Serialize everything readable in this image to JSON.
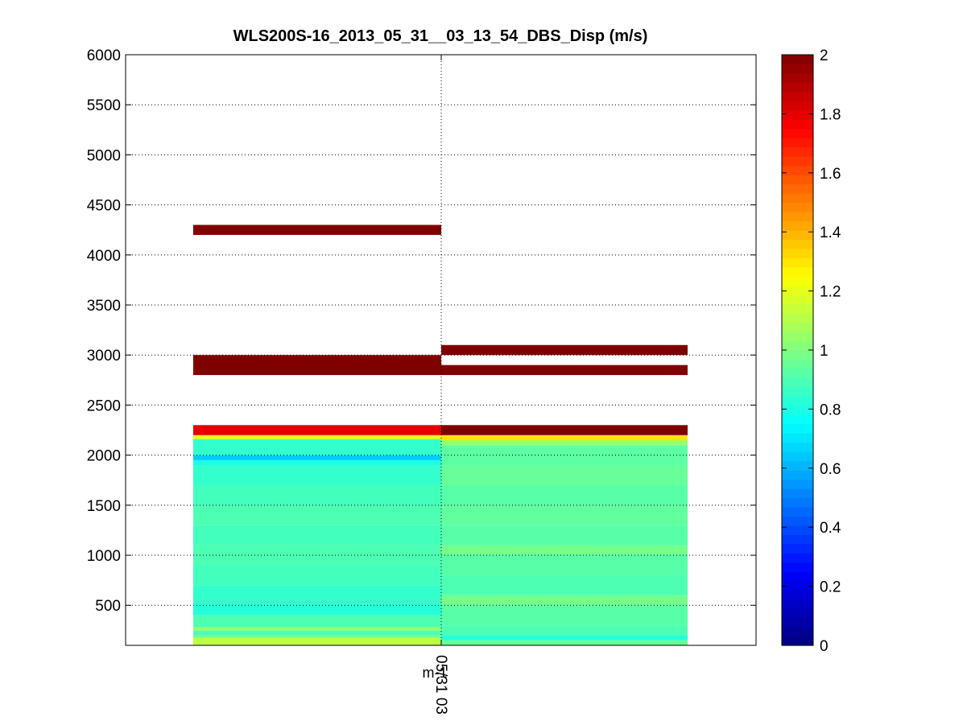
{
  "chart_data": {
    "type": "heatmap",
    "title": "WLS200S-16_2013_05_31__03_13_54_DBS_Disp (m/s)",
    "xlabel": "",
    "ylabel": "",
    "x_tick_labels": [
      "05/31 03"
    ],
    "x_unit_label": "m-1",
    "ylim": [
      100,
      6000
    ],
    "yticks": [
      500,
      1000,
      1500,
      2000,
      2500,
      3000,
      3500,
      4000,
      4500,
      5000,
      5500,
      6000
    ],
    "grid": true,
    "colormap": "jet",
    "clim": [
      0,
      2
    ],
    "colorbar_ticks": [
      0,
      0.2,
      0.4,
      0.6,
      0.8,
      1,
      1.2,
      1.4,
      1.6,
      1.8,
      2
    ],
    "columns": [
      {
        "name": "",
        "cells": [
          {
            "y0": 100,
            "y1": 175,
            "value": 1.12
          },
          {
            "y0": 175,
            "y1": 200,
            "value": 0.98
          },
          {
            "y0": 200,
            "y1": 250,
            "value": 0.9
          },
          {
            "y0": 250,
            "y1": 280,
            "value": 1.05
          },
          {
            "y0": 280,
            "y1": 400,
            "value": 0.9
          },
          {
            "y0": 400,
            "y1": 500,
            "value": 0.82
          },
          {
            "y0": 500,
            "y1": 700,
            "value": 0.85
          },
          {
            "y0": 700,
            "y1": 900,
            "value": 0.88
          },
          {
            "y0": 900,
            "y1": 1100,
            "value": 0.9
          },
          {
            "y0": 1100,
            "y1": 1300,
            "value": 0.88
          },
          {
            "y0": 1300,
            "y1": 1500,
            "value": 0.9
          },
          {
            "y0": 1500,
            "y1": 1700,
            "value": 0.88
          },
          {
            "y0": 1700,
            "y1": 1900,
            "value": 0.85
          },
          {
            "y0": 1900,
            "y1": 1950,
            "value": 0.8
          },
          {
            "y0": 1950,
            "y1": 2000,
            "value": 0.65
          },
          {
            "y0": 2000,
            "y1": 2160,
            "value": 0.85
          },
          {
            "y0": 2160,
            "y1": 2200,
            "value": 1.2
          },
          {
            "y0": 2200,
            "y1": 2300,
            "value": 1.8
          },
          {
            "y0": 2800,
            "y1": 3000,
            "value": 2.0
          },
          {
            "y0": 4200,
            "y1": 4300,
            "value": 2.0
          }
        ]
      },
      {
        "name": "",
        "cells": [
          {
            "y0": 100,
            "y1": 150,
            "value": 0.95
          },
          {
            "y0": 150,
            "y1": 200,
            "value": 0.82
          },
          {
            "y0": 200,
            "y1": 300,
            "value": 0.9
          },
          {
            "y0": 300,
            "y1": 500,
            "value": 0.92
          },
          {
            "y0": 500,
            "y1": 600,
            "value": 0.98
          },
          {
            "y0": 600,
            "y1": 800,
            "value": 0.9
          },
          {
            "y0": 800,
            "y1": 1000,
            "value": 0.92
          },
          {
            "y0": 1000,
            "y1": 1100,
            "value": 0.98
          },
          {
            "y0": 1100,
            "y1": 1300,
            "value": 0.92
          },
          {
            "y0": 1300,
            "y1": 1500,
            "value": 0.94
          },
          {
            "y0": 1500,
            "y1": 1700,
            "value": 0.92
          },
          {
            "y0": 1700,
            "y1": 1900,
            "value": 0.95
          },
          {
            "y0": 1900,
            "y1": 2100,
            "value": 0.93
          },
          {
            "y0": 2100,
            "y1": 2150,
            "value": 1.05
          },
          {
            "y0": 2150,
            "y1": 2200,
            "value": 1.3
          },
          {
            "y0": 2200,
            "y1": 2300,
            "value": 2.0
          },
          {
            "y0": 2800,
            "y1": 2900,
            "value": 2.0
          },
          {
            "y0": 3000,
            "y1": 3100,
            "value": 2.0
          }
        ]
      }
    ]
  }
}
